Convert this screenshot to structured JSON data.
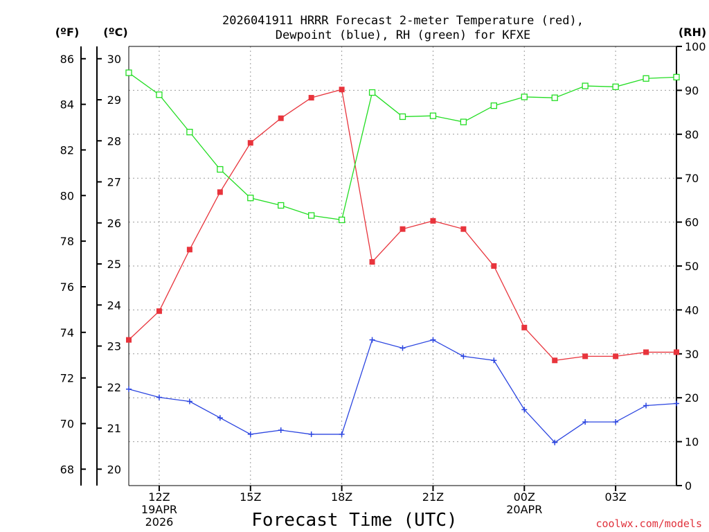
{
  "chart_data": {
    "type": "line",
    "title_line1": "2026041911 HRRR Forecast 2-meter Temperature (red),",
    "title_line2": "Dewpoint (blue), RH (green) for KFXE",
    "xlabel": "Forecast Time (UTC)",
    "credit": "coolwx.com/models",
    "units": {
      "fahrenheit": "(ºF)",
      "celsius": "(ºC)",
      "rh": "(RH)"
    },
    "x_range_hours": [
      11,
      29
    ],
    "x_ticks": [
      {
        "hour": 12,
        "line1": "12Z",
        "line2": "19APR",
        "line3": "2026"
      },
      {
        "hour": 15,
        "line1": "15Z"
      },
      {
        "hour": 18,
        "line1": "18Z"
      },
      {
        "hour": 21,
        "line1": "21Z"
      },
      {
        "hour": 24,
        "line1": "00Z",
        "line2": "20APR"
      },
      {
        "hour": 27,
        "line1": "03Z"
      }
    ],
    "celsius_ticks": [
      "20",
      "21",
      "22",
      "23",
      "24",
      "25",
      "26",
      "27",
      "28",
      "29",
      "30"
    ],
    "fahrenheit_ticks": [
      "68",
      "70",
      "72",
      "74",
      "76",
      "78",
      "80",
      "82",
      "84",
      "86"
    ],
    "rh_ticks": [
      "0",
      "10",
      "20",
      "30",
      "40",
      "50",
      "60",
      "70",
      "80",
      "90",
      "100"
    ],
    "ylim_celsius": [
      19.6,
      30.3
    ],
    "ylim_rh": [
      0,
      100
    ],
    "hours": [
      11,
      12,
      13,
      14,
      15,
      16,
      17,
      18,
      19,
      20,
      21,
      22,
      23,
      24,
      25,
      26,
      27,
      28,
      29
    ],
    "series": [
      {
        "name": "Temperature",
        "unit": "celsius",
        "color": "#e8343c",
        "marker": "filled-square",
        "values": [
          23.15,
          23.85,
          25.35,
          26.75,
          27.95,
          28.55,
          29.05,
          29.25,
          25.05,
          25.85,
          26.05,
          25.85,
          24.95,
          23.45,
          22.65,
          22.75,
          22.75,
          22.85,
          22.85
        ]
      },
      {
        "name": "Dewpoint",
        "unit": "celsius",
        "color": "#2a44e0",
        "marker": "plus",
        "values": [
          21.95,
          21.75,
          21.65,
          21.25,
          20.85,
          20.95,
          20.85,
          20.85,
          23.15,
          22.95,
          23.15,
          22.75,
          22.65,
          21.45,
          20.65,
          21.15,
          21.15,
          21.55,
          21.6
        ]
      },
      {
        "name": "RH",
        "unit": "rh",
        "color": "#22dd22",
        "marker": "open-square",
        "values": [
          94,
          89,
          80.5,
          72,
          65.5,
          63.8,
          61.5,
          60.5,
          89.5,
          84,
          84.2,
          82.8,
          86.5,
          88.5,
          88.3,
          91,
          90.8,
          92.7,
          93
        ]
      }
    ]
  }
}
